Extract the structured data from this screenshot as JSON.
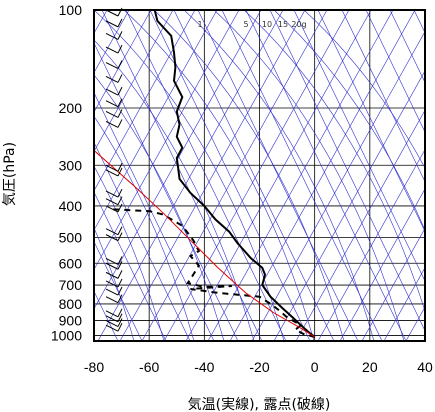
{
  "chart_data": {
    "type": "line",
    "title": "",
    "xlabel": "気温(実線), 露点(破線)",
    "ylabel": "気圧(hPa)",
    "xlim": [
      -80,
      40
    ],
    "ylim": [
      1040,
      100
    ],
    "y_scale": "log",
    "x_ticks": [
      "-80",
      "-60",
      "-40",
      "-20",
      "0",
      "20",
      "40"
    ],
    "y_ticks": [
      "100",
      "200",
      "300",
      "400",
      "500",
      "600",
      "700",
      "800",
      "900",
      "1000"
    ],
    "mixing_ratio_labels": [
      "1",
      "5",
      "10",
      "15",
      "20g"
    ],
    "grid": true,
    "colors": {
      "temperature": "#000000",
      "dewpoint": "#000000",
      "parcel": "#e00000",
      "adiabats": "#3030d0",
      "grid": "#000000",
      "wind": "#000000"
    },
    "series": [
      {
        "style": "solid",
        "points": [
          [
            -58,
            100
          ],
          [
            -57,
            108
          ],
          [
            -52,
            120
          ],
          [
            -51,
            135
          ],
          [
            -50.5,
            150
          ],
          [
            -51,
            165
          ],
          [
            -48,
            185
          ],
          [
            -50,
            205
          ],
          [
            -49,
            225
          ],
          [
            -50,
            245
          ],
          [
            -48,
            265
          ],
          [
            -50,
            285
          ],
          [
            -49.5,
            305
          ],
          [
            -49,
            330
          ],
          [
            -45,
            365
          ],
          [
            -40,
            400
          ],
          [
            -36,
            440
          ],
          [
            -31,
            480
          ],
          [
            -28,
            520
          ],
          [
            -23,
            580
          ],
          [
            -19,
            620
          ],
          [
            -18,
            650
          ],
          [
            -19,
            700
          ],
          [
            -16,
            760
          ],
          [
            -12,
            820
          ],
          [
            -8,
            880
          ],
          [
            -5,
            930
          ],
          [
            -2,
            980
          ],
          [
            0,
            1010
          ]
        ]
      },
      {
        "style": "dashed",
        "points": [
          [
            -73,
            410
          ],
          [
            -60,
            415
          ],
          [
            -55,
            425
          ],
          [
            -48,
            460
          ],
          [
            -44,
            510
          ],
          [
            -42,
            550
          ],
          [
            -45,
            570
          ],
          [
            -42,
            610
          ],
          [
            -44,
            650
          ],
          [
            -46,
            690
          ],
          [
            -40,
            710
          ],
          [
            -30,
            705
          ],
          [
            -45,
            720
          ],
          [
            -35,
            740
          ],
          [
            -20,
            760
          ],
          [
            -15,
            810
          ],
          [
            -12,
            850
          ],
          [
            -10,
            880
          ],
          [
            -5,
            930
          ],
          [
            -7,
            960
          ],
          [
            -4,
            990
          ],
          [
            0,
            1010
          ]
        ]
      },
      {
        "style": "solid-red",
        "points": [
          [
            -80,
            270
          ],
          [
            -65,
            350
          ],
          [
            -55,
            420
          ],
          [
            -45,
            510
          ],
          [
            -35,
            620
          ],
          [
            -25,
            740
          ],
          [
            -15,
            850
          ],
          [
            -5,
            950
          ],
          [
            0,
            1010
          ]
        ]
      }
    ]
  }
}
